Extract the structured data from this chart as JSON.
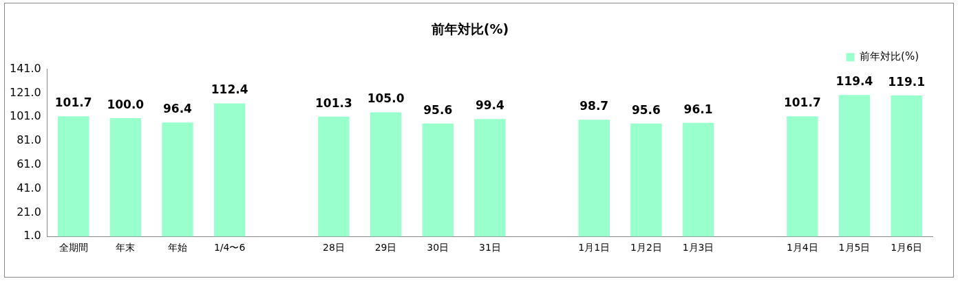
{
  "chart_data": {
    "type": "bar",
    "title": "前年対比(%)",
    "categories": [
      "全期間",
      "年末",
      "年始",
      "1/4〜6",
      null,
      "28日",
      "29日",
      "30日",
      "31日",
      null,
      "1月1日",
      "1月2日",
      "1月3日",
      null,
      "1月4日",
      "1月5日",
      "1月6日"
    ],
    "series": [
      {
        "name": "前年対比(%)",
        "color": "#99ffcc",
        "values": [
          101.7,
          100.0,
          96.4,
          112.4,
          null,
          101.3,
          105.0,
          95.6,
          99.4,
          null,
          98.7,
          95.6,
          96.1,
          null,
          101.7,
          119.4,
          119.1
        ],
        "value_labels": [
          "101.7",
          "100.0",
          "96.4",
          "112.4",
          null,
          "101.3",
          "105.0",
          "95.6",
          "99.4",
          null,
          "98.7",
          "95.6",
          "96.1",
          null,
          "101.7",
          "119.4",
          "119.1"
        ]
      }
    ],
    "ylim": [
      1,
      141
    ],
    "yticks": [
      {
        "value": 1,
        "label": "1.0"
      },
      {
        "value": 21,
        "label": "21.0"
      },
      {
        "value": 41,
        "label": "41.0"
      },
      {
        "value": 61,
        "label": "61.0"
      },
      {
        "value": 81,
        "label": "81.0"
      },
      {
        "value": 101,
        "label": "101.0"
      },
      {
        "value": 121,
        "label": "121.0"
      },
      {
        "value": 141,
        "label": "141.0"
      }
    ],
    "grid": false,
    "legend": "top right"
  }
}
